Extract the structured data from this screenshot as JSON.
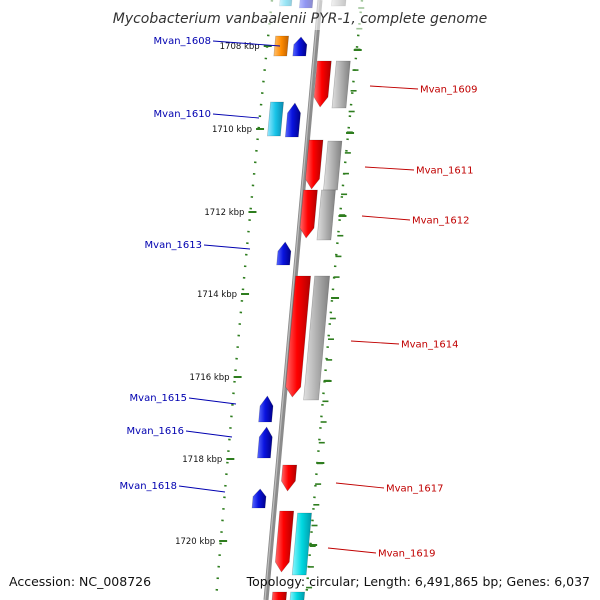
{
  "title": "Mycobacterium vanbaalenii PYR-1, complete genome",
  "accession": "Accession: NC_008726",
  "topology": "Topology: circular; Length: 6,491,865 bp; Genes: 6,037",
  "colors": {
    "backbone": "#8c8c8c",
    "tick": "#2e7d1e",
    "forward_gene": "#e80000",
    "reverse_gene": "#0a14e0",
    "rna_forward": "#00d8e0",
    "rna_reverse": "#18c4e8",
    "other_gene": "#ff8c00",
    "cds_shadow": "#b0b0b0",
    "left_label": "#0000b0",
    "right_label": "#c00000"
  },
  "kbp_marks": [
    "1708 kbp",
    "1710 kbp",
    "1712 kbp",
    "1714 kbp",
    "1716 kbp",
    "1718 kbp",
    "1720 kbp"
  ],
  "labels_left": [
    "Mvan_1608",
    "Mvan_1610",
    "Mvan_1613",
    "Mvan_1615",
    "Mvan_1616",
    "Mvan_1618"
  ],
  "labels_right": [
    "Mvan_1609",
    "Mvan_1611",
    "Mvan_1612",
    "Mvan_1614",
    "Mvan_1617",
    "Mvan_1619"
  ]
}
